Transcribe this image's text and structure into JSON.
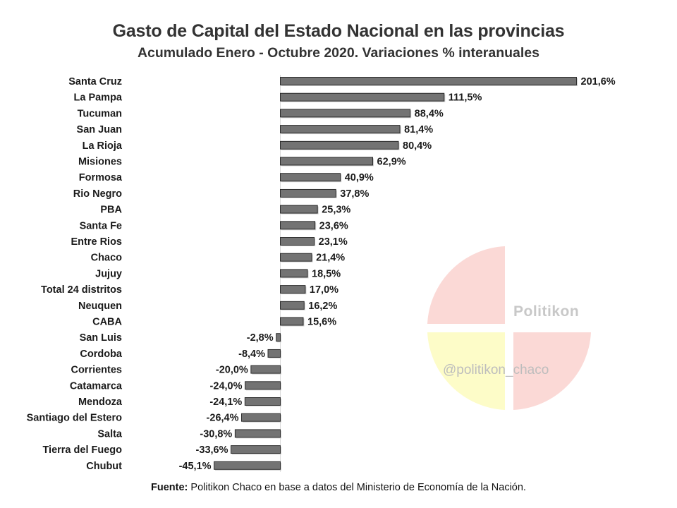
{
  "chart_data": {
    "type": "bar",
    "orientation": "horizontal",
    "title": "Gasto de Capital del Estado Nacional en las provincias",
    "subtitle": "Acumulado Enero - Octubre 2020. Variaciones % interanuales",
    "categories": [
      "Santa Cruz",
      "La Pampa",
      "Tucuman",
      "San Juan",
      "La Rioja",
      "Misiones",
      "Formosa",
      "Rio Negro",
      "PBA",
      "Santa Fe",
      "Entre Rios",
      "Chaco",
      "Jujuy",
      "Total 24 distritos",
      "Neuquen",
      "CABA",
      "San Luis",
      "Cordoba",
      "Corrientes",
      "Catamarca",
      "Mendoza",
      "Santiago del Estero",
      "Salta",
      "Tierra del Fuego",
      "Chubut"
    ],
    "values": [
      201.6,
      111.5,
      88.4,
      81.4,
      80.4,
      62.9,
      40.9,
      37.8,
      25.3,
      23.6,
      23.1,
      21.4,
      18.5,
      17.0,
      16.2,
      15.6,
      -2.8,
      -8.4,
      -20.0,
      -24.0,
      -24.1,
      -26.4,
      -30.8,
      -33.6,
      -45.1
    ],
    "data_labels": [
      "201,6%",
      "111,5%",
      "88,4%",
      "81,4%",
      "80,4%",
      "62,9%",
      "40,9%",
      "37,8%",
      "25,3%",
      "23,6%",
      "23,1%",
      "21,4%",
      "18,5%",
      "17,0%",
      "16,2%",
      "15,6%",
      "-2,8%",
      "-8,4%",
      "-20,0%",
      "-24,0%",
      "-24,1%",
      "-26,4%",
      "-30,8%",
      "-33,6%",
      "-45,1%"
    ],
    "bar_color": "#737373",
    "grid": false,
    "legend": "none"
  },
  "watermark": {
    "brand": "Politikon",
    "handle": "@politikon_chaco",
    "colors": [
      "#fbd9d6",
      "#fdfcc8",
      "#fbd9d6"
    ]
  },
  "source": {
    "label": "Fuente:",
    "text": " Politikon Chaco en base a datos del Ministerio de Economía de la Nación."
  }
}
